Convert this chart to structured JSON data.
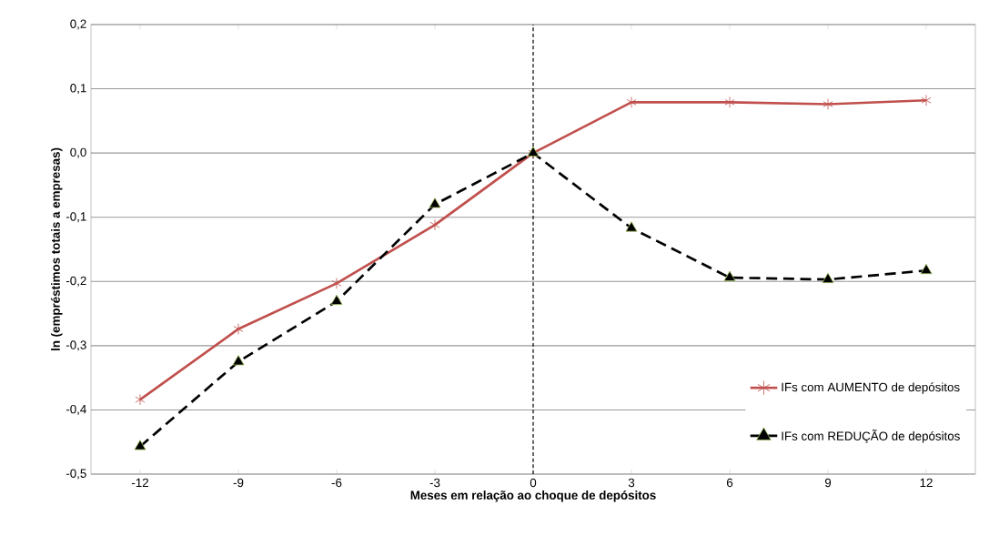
{
  "chart_data": {
    "type": "line",
    "xlabel": "Meses em relação ao choque de depósitos",
    "ylabel": "ln (empréstimos totais a empresas)",
    "x": [
      -12,
      -9,
      -6,
      -3,
      0,
      3,
      6,
      9,
      12
    ],
    "xlim": [
      -13.5,
      13.5
    ],
    "xticks": [
      -12,
      -9,
      -6,
      -3,
      0,
      3,
      6,
      9,
      12
    ],
    "ylim": [
      -0.5,
      0.2
    ],
    "yticks": [
      {
        "value": -0.5,
        "label": "-0,5"
      },
      {
        "value": -0.4,
        "label": "-0,4"
      },
      {
        "value": -0.3,
        "label": "-0,3"
      },
      {
        "value": -0.2,
        "label": "-0,2"
      },
      {
        "value": -0.1,
        "label": "-0,1"
      },
      {
        "value": 0,
        "label": "0,0"
      },
      {
        "value": 0.1,
        "label": "0,1"
      },
      {
        "value": 0.2,
        "label": "0,2"
      }
    ],
    "grid": "y",
    "legend": "right",
    "ref_lines": [
      {
        "axis": "x",
        "value": 0,
        "color": "#000000",
        "line_style": "dashed"
      }
    ],
    "series": [
      {
        "name": "IFs com AUMENTO de depósitos",
        "color": "#c0504d",
        "marker": "cross",
        "line_style": "solid",
        "values": [
          -0.384,
          -0.274,
          -0.203,
          -0.112,
          0,
          0.079,
          0.079,
          0.076,
          0.082
        ]
      },
      {
        "name": "IFs com REDUÇÃO de depósitos",
        "color": "#000000",
        "marker": "triangle",
        "line_style": "dashed",
        "values": [
          -0.457,
          -0.325,
          -0.231,
          -0.08,
          0,
          -0.117,
          -0.194,
          -0.197,
          -0.183
        ]
      }
    ]
  }
}
